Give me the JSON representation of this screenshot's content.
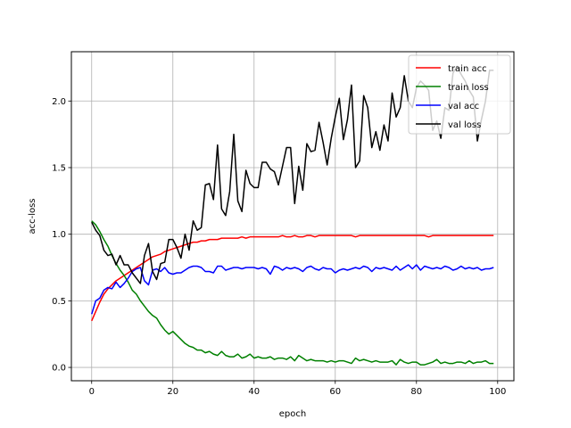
{
  "chart_data": {
    "type": "line",
    "xlabel": "epoch",
    "ylabel": "acc-loss",
    "xlim": [
      -5,
      104
    ],
    "ylim": [
      -0.1,
      2.37
    ],
    "xticks": [
      0,
      20,
      40,
      60,
      80,
      100
    ],
    "xtick_labels": [
      "0",
      "20",
      "40",
      "60",
      "80",
      "100"
    ],
    "yticks": [
      0.0,
      0.5,
      1.0,
      1.5,
      2.0
    ],
    "ytick_labels": [
      "0.0",
      "0.5",
      "1.0",
      "1.5",
      "2.0"
    ],
    "grid": true,
    "legend_position": "top-right",
    "series": [
      {
        "name": "train acc",
        "color": "#ff0000",
        "x": [
          0,
          1,
          2,
          3,
          4,
          5,
          6,
          7,
          8,
          9,
          10,
          11,
          12,
          13,
          14,
          15,
          16,
          17,
          18,
          19,
          20,
          21,
          22,
          23,
          24,
          25,
          26,
          27,
          28,
          29,
          30,
          31,
          32,
          33,
          34,
          35,
          36,
          37,
          38,
          39,
          40,
          41,
          42,
          43,
          44,
          45,
          46,
          47,
          48,
          49,
          50,
          51,
          52,
          53,
          54,
          55,
          56,
          57,
          58,
          59,
          60,
          61,
          62,
          63,
          64,
          65,
          66,
          67,
          68,
          69,
          70,
          71,
          72,
          73,
          74,
          75,
          76,
          77,
          78,
          79,
          80,
          81,
          82,
          83,
          84,
          85,
          86,
          87,
          88,
          89,
          90,
          91,
          92,
          93,
          94,
          95,
          96,
          97,
          98,
          99
        ],
        "values": [
          0.35,
          0.42,
          0.49,
          0.55,
          0.59,
          0.62,
          0.65,
          0.67,
          0.69,
          0.71,
          0.73,
          0.75,
          0.77,
          0.79,
          0.81,
          0.83,
          0.84,
          0.85,
          0.87,
          0.88,
          0.89,
          0.9,
          0.91,
          0.92,
          0.93,
          0.94,
          0.94,
          0.95,
          0.95,
          0.96,
          0.96,
          0.96,
          0.97,
          0.97,
          0.97,
          0.97,
          0.97,
          0.98,
          0.97,
          0.98,
          0.98,
          0.98,
          0.98,
          0.98,
          0.98,
          0.98,
          0.98,
          0.99,
          0.98,
          0.98,
          0.99,
          0.98,
          0.98,
          0.99,
          0.99,
          0.98,
          0.99,
          0.99,
          0.99,
          0.99,
          0.99,
          0.99,
          0.99,
          0.99,
          0.99,
          0.98,
          0.99,
          0.99,
          0.99,
          0.99,
          0.99,
          0.99,
          0.99,
          0.99,
          0.99,
          0.99,
          0.99,
          0.99,
          0.99,
          0.99,
          0.99,
          0.99,
          0.99,
          0.98,
          0.99,
          0.99,
          0.99,
          0.99,
          0.99,
          0.99,
          0.99,
          0.99,
          0.99,
          0.99,
          0.99,
          0.99,
          0.99,
          0.99,
          0.99,
          0.99
        ]
      },
      {
        "name": "train loss",
        "color": "#008000",
        "x": [
          0,
          1,
          2,
          3,
          4,
          5,
          6,
          7,
          8,
          9,
          10,
          11,
          12,
          13,
          14,
          15,
          16,
          17,
          18,
          19,
          20,
          21,
          22,
          23,
          24,
          25,
          26,
          27,
          28,
          29,
          30,
          31,
          32,
          33,
          34,
          35,
          36,
          37,
          38,
          39,
          40,
          41,
          42,
          43,
          44,
          45,
          46,
          47,
          48,
          49,
          50,
          51,
          52,
          53,
          54,
          55,
          56,
          57,
          58,
          59,
          60,
          61,
          62,
          63,
          64,
          65,
          66,
          67,
          68,
          69,
          70,
          71,
          72,
          73,
          74,
          75,
          76,
          77,
          78,
          79,
          80,
          81,
          82,
          83,
          84,
          85,
          86,
          87,
          88,
          89,
          90,
          91,
          92,
          93,
          94,
          95,
          96,
          97,
          98,
          99
        ],
        "values": [
          1.1,
          1.07,
          1.02,
          0.96,
          0.91,
          0.84,
          0.78,
          0.73,
          0.69,
          0.64,
          0.58,
          0.55,
          0.5,
          0.46,
          0.42,
          0.39,
          0.37,
          0.32,
          0.28,
          0.25,
          0.27,
          0.24,
          0.21,
          0.18,
          0.16,
          0.15,
          0.13,
          0.13,
          0.11,
          0.12,
          0.1,
          0.09,
          0.12,
          0.09,
          0.08,
          0.08,
          0.1,
          0.07,
          0.08,
          0.1,
          0.07,
          0.08,
          0.07,
          0.07,
          0.08,
          0.06,
          0.07,
          0.07,
          0.06,
          0.08,
          0.05,
          0.09,
          0.07,
          0.05,
          0.06,
          0.05,
          0.05,
          0.05,
          0.04,
          0.05,
          0.04,
          0.05,
          0.05,
          0.04,
          0.03,
          0.07,
          0.05,
          0.06,
          0.05,
          0.04,
          0.05,
          0.04,
          0.04,
          0.04,
          0.05,
          0.02,
          0.06,
          0.04,
          0.03,
          0.04,
          0.04,
          0.02,
          0.02,
          0.03,
          0.04,
          0.06,
          0.03,
          0.04,
          0.03,
          0.03,
          0.04,
          0.04,
          0.03,
          0.05,
          0.03,
          0.04,
          0.04,
          0.05,
          0.03,
          0.03
        ]
      },
      {
        "name": "val acc",
        "color": "#0000ff",
        "x": [
          0,
          1,
          2,
          3,
          4,
          5,
          6,
          7,
          8,
          9,
          10,
          11,
          12,
          13,
          14,
          15,
          16,
          17,
          18,
          19,
          20,
          21,
          22,
          23,
          24,
          25,
          26,
          27,
          28,
          29,
          30,
          31,
          32,
          33,
          34,
          35,
          36,
          37,
          38,
          39,
          40,
          41,
          42,
          43,
          44,
          45,
          46,
          47,
          48,
          49,
          50,
          51,
          52,
          53,
          54,
          55,
          56,
          57,
          58,
          59,
          60,
          61,
          62,
          63,
          64,
          65,
          66,
          67,
          68,
          69,
          70,
          71,
          72,
          73,
          74,
          75,
          76,
          77,
          78,
          79,
          80,
          81,
          82,
          83,
          84,
          85,
          86,
          87,
          88,
          89,
          90,
          91,
          92,
          93,
          94,
          95,
          96,
          97,
          98,
          99
        ],
        "values": [
          0.4,
          0.5,
          0.52,
          0.58,
          0.6,
          0.59,
          0.64,
          0.6,
          0.63,
          0.67,
          0.72,
          0.74,
          0.75,
          0.65,
          0.62,
          0.73,
          0.74,
          0.72,
          0.75,
          0.71,
          0.7,
          0.71,
          0.71,
          0.73,
          0.75,
          0.76,
          0.76,
          0.75,
          0.72,
          0.72,
          0.71,
          0.76,
          0.76,
          0.73,
          0.74,
          0.75,
          0.75,
          0.74,
          0.75,
          0.75,
          0.75,
          0.74,
          0.75,
          0.74,
          0.7,
          0.76,
          0.75,
          0.73,
          0.75,
          0.74,
          0.75,
          0.74,
          0.72,
          0.75,
          0.76,
          0.74,
          0.73,
          0.75,
          0.74,
          0.74,
          0.71,
          0.73,
          0.74,
          0.73,
          0.74,
          0.75,
          0.74,
          0.76,
          0.75,
          0.72,
          0.75,
          0.74,
          0.75,
          0.74,
          0.73,
          0.76,
          0.73,
          0.75,
          0.77,
          0.74,
          0.77,
          0.73,
          0.76,
          0.75,
          0.74,
          0.75,
          0.74,
          0.76,
          0.75,
          0.73,
          0.74,
          0.76,
          0.74,
          0.75,
          0.74,
          0.75,
          0.73,
          0.74,
          0.74,
          0.75
        ]
      },
      {
        "name": "val loss",
        "color": "#000000",
        "x": [
          0,
          1,
          2,
          3,
          4,
          5,
          6,
          7,
          8,
          9,
          10,
          11,
          12,
          13,
          14,
          15,
          16,
          17,
          18,
          19,
          20,
          21,
          22,
          23,
          24,
          25,
          26,
          27,
          28,
          29,
          30,
          31,
          32,
          33,
          34,
          35,
          36,
          37,
          38,
          39,
          40,
          41,
          42,
          43,
          44,
          45,
          46,
          47,
          48,
          49,
          50,
          51,
          52,
          53,
          54,
          55,
          56,
          57,
          58,
          59,
          60,
          61,
          62,
          63,
          64,
          65,
          66,
          67,
          68,
          69,
          70,
          71,
          72,
          73,
          74,
          75,
          76,
          77,
          78,
          79,
          80,
          81,
          82,
          83,
          84,
          85,
          86,
          87,
          88,
          89,
          90,
          91,
          92,
          93,
          94,
          95,
          96,
          97,
          98,
          99
        ],
        "values": [
          1.09,
          1.03,
          0.99,
          0.88,
          0.84,
          0.85,
          0.77,
          0.84,
          0.77,
          0.77,
          0.71,
          0.67,
          0.63,
          0.84,
          0.93,
          0.72,
          0.66,
          0.78,
          0.79,
          0.96,
          0.96,
          0.9,
          0.82,
          1.0,
          0.88,
          1.1,
          1.03,
          1.05,
          1.37,
          1.38,
          1.26,
          1.67,
          1.19,
          1.14,
          1.32,
          1.75,
          1.25,
          1.17,
          1.48,
          1.38,
          1.35,
          1.35,
          1.54,
          1.54,
          1.49,
          1.47,
          1.37,
          1.51,
          1.65,
          1.65,
          1.23,
          1.51,
          1.33,
          1.68,
          1.62,
          1.63,
          1.84,
          1.69,
          1.52,
          1.72,
          1.88,
          2.02,
          1.71,
          1.86,
          2.12,
          1.5,
          1.55,
          2.04,
          1.95,
          1.65,
          1.77,
          1.63,
          1.82,
          1.7,
          2.06,
          1.88,
          1.95,
          2.19,
          2.0,
          1.95,
          2.1,
          2.15,
          2.12,
          2.08,
          1.78,
          1.85,
          1.72,
          1.95,
          1.93,
          2.21,
          2.26,
          2.2,
          2.15,
          2.08,
          2.03,
          1.7,
          1.86,
          2.0,
          2.23,
          2.23
        ]
      }
    ]
  }
}
